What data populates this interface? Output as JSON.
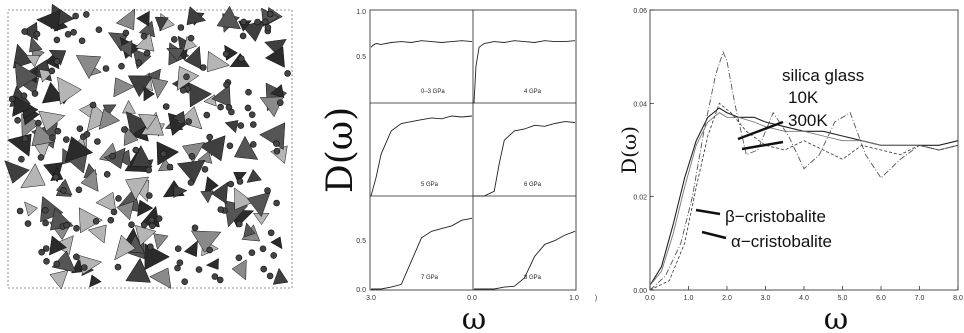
{
  "figure": {
    "structure_panel": {
      "description_icon": "silica-network-structure"
    },
    "middle_panel": {
      "ylabel": "D(ω)",
      "xlabel": "ω",
      "y_ticks_top": [
        "1.0",
        "0.5"
      ],
      "y_ticks_bottom": [
        "0.5",
        "0.0"
      ],
      "x_ticks": [
        "3.0",
        "0.0",
        "1.0"
      ],
      "x_tick_tail": ")",
      "subplots": [
        {
          "label": "0–3 GPa",
          "x": [
            0,
            0.02,
            0.05,
            0.1,
            0.2,
            0.3,
            0.4,
            0.5,
            0.6,
            0.7,
            0.8,
            0.9,
            1.0
          ],
          "y": [
            0.6,
            0.62,
            0.64,
            0.63,
            0.65,
            0.66,
            0.65,
            0.67,
            0.66,
            0.65,
            0.66,
            0.67,
            0.66
          ]
        },
        {
          "label": "4 GPa",
          "x": [
            0,
            0.02,
            0.05,
            0.1,
            0.2,
            0.3,
            0.4,
            0.5,
            0.6,
            0.7,
            0.8,
            0.9,
            1.0
          ],
          "y": [
            0.0,
            0.4,
            0.6,
            0.64,
            0.66,
            0.65,
            0.67,
            0.66,
            0.65,
            0.67,
            0.66,
            0.66,
            0.67
          ]
        },
        {
          "label": "5 GPa",
          "x": [
            0,
            0.05,
            0.1,
            0.2,
            0.3,
            0.4,
            0.5,
            0.6,
            0.7,
            0.8,
            0.9,
            1.0
          ],
          "y": [
            0.0,
            0.2,
            0.45,
            0.7,
            0.78,
            0.8,
            0.82,
            0.84,
            0.83,
            0.86,
            0.85,
            0.86
          ]
        },
        {
          "label": "6 GPa",
          "x": [
            0,
            0.1,
            0.2,
            0.25,
            0.3,
            0.4,
            0.5,
            0.6,
            0.7,
            0.8,
            0.9,
            1.0
          ],
          "y": [
            0.0,
            0.0,
            0.05,
            0.35,
            0.6,
            0.7,
            0.72,
            0.76,
            0.75,
            0.78,
            0.8,
            0.79
          ]
        },
        {
          "label": "7 GPa",
          "x": [
            0,
            0.1,
            0.2,
            0.3,
            0.4,
            0.5,
            0.6,
            0.7,
            0.8,
            0.9,
            1.0
          ],
          "y": [
            0.0,
            0.0,
            0.02,
            0.05,
            0.3,
            0.55,
            0.62,
            0.65,
            0.68,
            0.74,
            0.76
          ]
        },
        {
          "label": "8 GPa",
          "x": [
            0,
            0.1,
            0.2,
            0.3,
            0.4,
            0.5,
            0.6,
            0.7,
            0.8,
            0.9,
            1.0
          ],
          "y": [
            0.0,
            0.0,
            0.0,
            0.02,
            0.03,
            0.12,
            0.35,
            0.48,
            0.52,
            0.58,
            0.62
          ]
        }
      ]
    }
  },
  "chart_data": {
    "type": "line",
    "ylabel": "D(ω)",
    "xlabel": "ω",
    "xlim": [
      0.0,
      8.0
    ],
    "ylim": [
      0.0,
      0.06
    ],
    "x_ticks": [
      "0.0",
      "1.0",
      "2.0",
      "3.0",
      "4.0",
      "5.0",
      "6.0",
      "7.0",
      "8.0"
    ],
    "y_ticks": [
      "0.00",
      "0.02",
      "0.04",
      "0.06"
    ],
    "annotations": [
      "silica glass",
      "10K",
      "300K",
      "β−cristobalite",
      "α−cristobalite"
    ],
    "series": [
      {
        "x": [
          0,
          0.3,
          0.6,
          0.9,
          1.2,
          1.5,
          1.8,
          2.0,
          2.3,
          2.7,
          3.0,
          3.5,
          4.0,
          4.5,
          5.0,
          5.5,
          6.0,
          6.5,
          7.0,
          7.5,
          8.0
        ],
        "y": [
          0.001,
          0.005,
          0.014,
          0.024,
          0.032,
          0.037,
          0.039,
          0.038,
          0.037,
          0.037,
          0.036,
          0.035,
          0.034,
          0.034,
          0.033,
          0.032,
          0.031,
          0.031,
          0.031,
          0.031,
          0.032
        ]
      },
      {
        "x": [
          0,
          0.3,
          0.6,
          0.9,
          1.2,
          1.5,
          1.8,
          2.0,
          2.3,
          2.7,
          3.0,
          3.5,
          4.0,
          4.5,
          5.0,
          5.5,
          6.0,
          6.5,
          7.0,
          7.5,
          8.0
        ],
        "y": [
          0.001,
          0.004,
          0.012,
          0.022,
          0.031,
          0.036,
          0.038,
          0.037,
          0.037,
          0.036,
          0.035,
          0.034,
          0.034,
          0.033,
          0.032,
          0.032,
          0.031,
          0.031,
          0.031,
          0.03,
          0.031
        ]
      },
      {
        "x": [
          0,
          0.4,
          0.8,
          1.1,
          1.4,
          1.7,
          1.9,
          2.0,
          2.2,
          2.5,
          2.8,
          3.2,
          3.6,
          4.0,
          4.4,
          4.8,
          5.2,
          5.6,
          6.0,
          6.5,
          7.0,
          7.5,
          8.0
        ],
        "y": [
          0.0,
          0.003,
          0.01,
          0.02,
          0.034,
          0.046,
          0.051,
          0.049,
          0.04,
          0.029,
          0.03,
          0.038,
          0.033,
          0.026,
          0.029,
          0.036,
          0.038,
          0.029,
          0.024,
          0.028,
          0.031,
          0.03,
          0.031
        ]
      },
      {
        "x": [
          0,
          0.5,
          0.9,
          1.2,
          1.5,
          1.8,
          2.1,
          2.5,
          3.0,
          3.5,
          4.0,
          4.5,
          5.0,
          5.5,
          6.0,
          6.5,
          7.0,
          7.5,
          8.0
        ],
        "y": [
          0.0,
          0.002,
          0.01,
          0.022,
          0.033,
          0.04,
          0.038,
          0.034,
          0.031,
          0.03,
          0.032,
          0.03,
          0.028,
          0.031,
          0.03,
          0.029,
          0.031,
          0.03,
          0.031
        ]
      }
    ]
  }
}
